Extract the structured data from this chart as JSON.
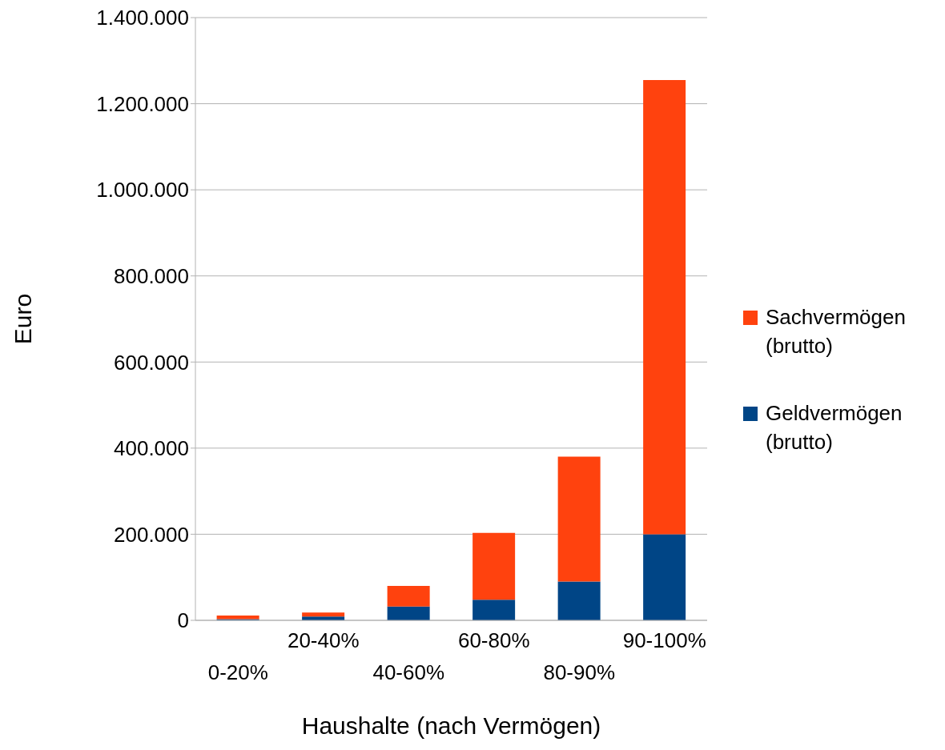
{
  "chart_data": {
    "type": "bar",
    "stacked": true,
    "xlabel": "Haushalte (nach Vermögen)",
    "ylabel": "Euro",
    "categories": [
      "0-20%",
      "20-40%",
      "40-60%",
      "60-80%",
      "80-90%",
      "90-100%"
    ],
    "series": [
      {
        "name": "Geldvermögen (brutto)",
        "color": "#004586",
        "values": [
          3000,
          9000,
          32000,
          48000,
          90000,
          200000
        ]
      },
      {
        "name": "Sachvermögen (brutto)",
        "color": "#ff420e",
        "values": [
          8000,
          9000,
          48000,
          155000,
          290000,
          1055000
        ]
      }
    ],
    "ylim": [
      0,
      1400000
    ],
    "yticks": [
      0,
      {
        "value": 200000,
        "label": "200.000"
      },
      {
        "value": 400000,
        "label": "400.000"
      },
      {
        "value": 600000,
        "label": "600.000"
      },
      {
        "value": 800000,
        "label": "800.000"
      },
      {
        "value": 1000000,
        "label": "1.000.000"
      },
      {
        "value": 1200000,
        "label": "1.200.000"
      },
      {
        "value": 1400000,
        "label": "1.400.000"
      }
    ],
    "grid": "y",
    "legend": "right"
  }
}
